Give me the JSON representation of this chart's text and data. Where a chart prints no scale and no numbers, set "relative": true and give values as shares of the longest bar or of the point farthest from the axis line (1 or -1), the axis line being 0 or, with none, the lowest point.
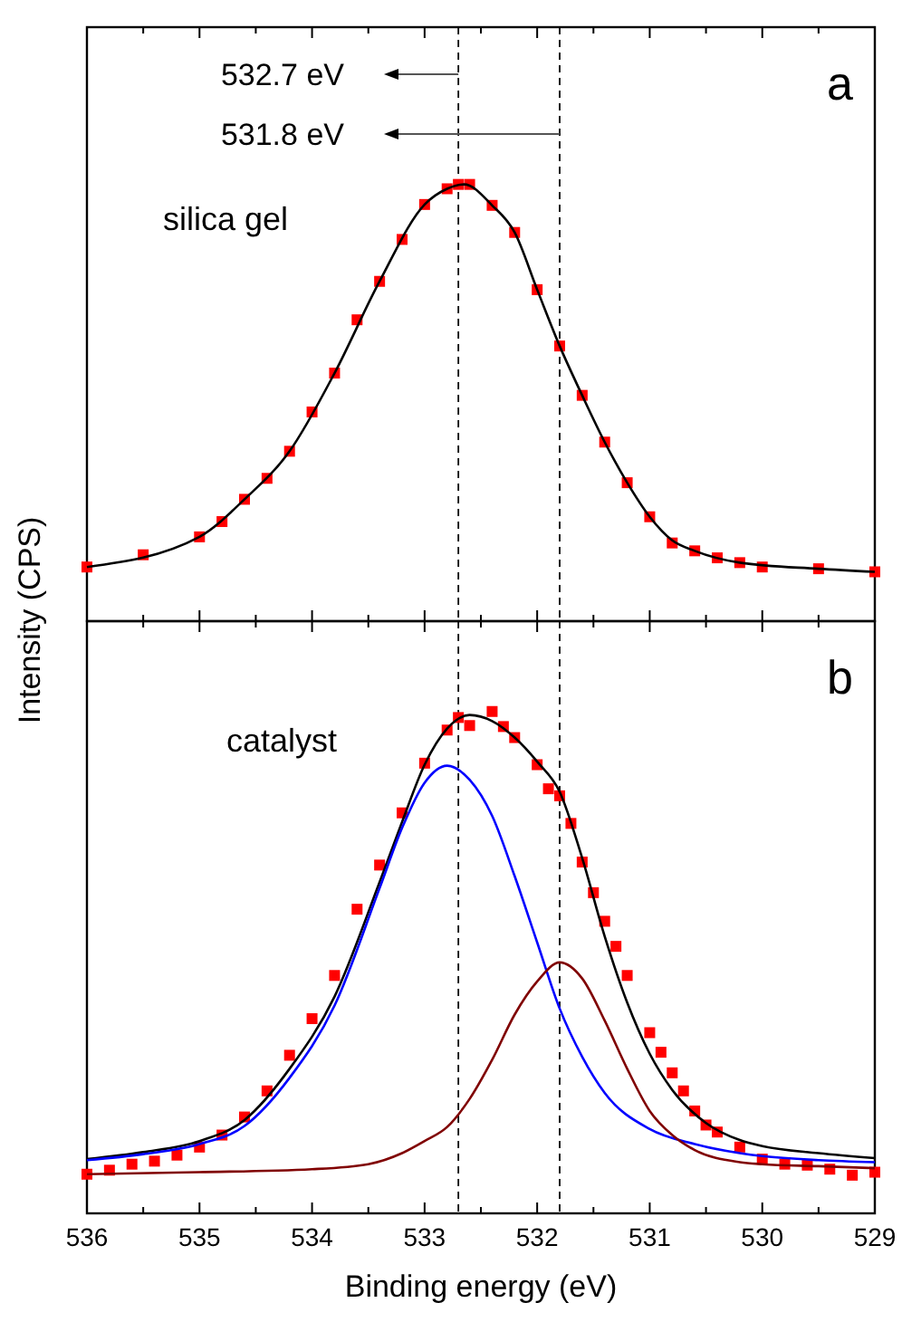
{
  "chart_data": [
    {
      "type": "scatter",
      "title": "a",
      "annotations": [
        "532.7 eV",
        "531.8 eV",
        "silica gel"
      ],
      "ylabel": "Intensity (CPS)",
      "relative": true,
      "tick_labels": false,
      "xlim": [
        536,
        529
      ],
      "xticks": [
        536,
        {
          "value": 535.5,
          "label": null
        },
        535,
        {
          "value": 534.5,
          "label": null
        },
        534,
        {
          "value": 533.5,
          "label": null
        },
        533,
        {
          "value": 532.5,
          "label": null
        },
        532,
        {
          "value": 531.5,
          "label": null
        },
        531,
        {
          "value": 530.5,
          "label": null
        },
        530,
        {
          "value": 529.5,
          "label": null
        },
        529
      ],
      "ref_lines": [
        {
          "axis": "x",
          "value": 532.7,
          "line_style": "dashed",
          "color": "#000000"
        },
        {
          "axis": "x",
          "value": 531.8,
          "line_style": "dashed",
          "color": "#000000"
        }
      ],
      "series": [
        {
          "marker": "square",
          "color": "#ff0000",
          "x": [
            536,
            535.5,
            535,
            534.8,
            534.6,
            534.4,
            534.2,
            534,
            533.8,
            533.6,
            533.4,
            533.2,
            533,
            532.8,
            532.7,
            532.6,
            532.4,
            532.2,
            532,
            531.8,
            531.6,
            531.4,
            531.2,
            531,
            530.8,
            530.6,
            530.4,
            530.2,
            530,
            529.5,
            529
          ],
          "values": [
            0.124,
            0.152,
            0.193,
            0.228,
            0.279,
            0.327,
            0.389,
            0.479,
            0.568,
            0.69,
            0.778,
            0.874,
            0.954,
            0.99,
            1,
            1,
            0.952,
            0.89,
            0.759,
            0.63,
            0.517,
            0.41,
            0.317,
            0.239,
            0.179,
            0.161,
            0.145,
            0.134,
            0.124,
            0.12,
            0.113
          ]
        },
        {
          "type": "line",
          "color": "#000000",
          "x": [
            536,
            535,
            534.6,
            534.2,
            533.8,
            533.4,
            533,
            532.8,
            532.65,
            532.4,
            532.2,
            532,
            531.8,
            531.6,
            531.4,
            531.2,
            531,
            530.8,
            530.6,
            530.2,
            529.5,
            529
          ],
          "values": [
            0.124,
            0.193,
            0.279,
            0.389,
            0.568,
            0.778,
            0.954,
            0.99,
            1,
            0.952,
            0.89,
            0.759,
            0.63,
            0.517,
            0.41,
            0.317,
            0.239,
            0.185,
            0.161,
            0.134,
            0.12,
            0.113
          ]
        }
      ]
    },
    {
      "type": "scatter",
      "title": "b",
      "annotations": [
        "catalyst"
      ],
      "xlabel": "Binding energy (eV)",
      "relative": true,
      "tick_labels": "x",
      "xlim": [
        536,
        529
      ],
      "xticks": [
        536,
        {
          "value": 535.5,
          "label": null
        },
        535,
        {
          "value": 534.5,
          "label": null
        },
        534,
        {
          "value": 533.5,
          "label": null
        },
        533,
        {
          "value": 532.5,
          "label": null
        },
        532,
        {
          "value": 531.5,
          "label": null
        },
        531,
        {
          "value": 530.5,
          "label": null
        },
        530,
        {
          "value": 529.5,
          "label": null
        },
        529
      ],
      "ref_lines": [
        {
          "axis": "x",
          "value": 532.7,
          "line_style": "dashed",
          "color": "#000000"
        },
        {
          "axis": "x",
          "value": 531.8,
          "line_style": "dashed",
          "color": "#000000"
        }
      ],
      "series": [
        {
          "marker": "square",
          "color": "#ff0000",
          "x": [
            536,
            535.8,
            535.6,
            535.4,
            535.2,
            535,
            534.8,
            534.6,
            534.4,
            534.2,
            534,
            533.8,
            533.6,
            533.4,
            533.2,
            533,
            532.8,
            532.7,
            532.6,
            532.4,
            532.3,
            532.2,
            532,
            531.9,
            531.8,
            531.7,
            531.6,
            531.5,
            531.4,
            531.3,
            531.2,
            531,
            530.9,
            530.8,
            530.7,
            530.6,
            530.5,
            530.4,
            530.2,
            530,
            529.8,
            529.6,
            529.4,
            529.2,
            529
          ],
          "values": [
            0.078,
            0.086,
            0.098,
            0.104,
            0.116,
            0.132,
            0.156,
            0.192,
            0.244,
            0.315,
            0.388,
            0.474,
            0.606,
            0.694,
            0.798,
            0.897,
            0.963,
            0.988,
            0.972,
            1,
            0.97,
            0.948,
            0.894,
            0.846,
            0.832,
            0.777,
            0.7,
            0.639,
            0.582,
            0.532,
            0.474,
            0.36,
            0.321,
            0.28,
            0.244,
            0.204,
            0.176,
            0.162,
            0.132,
            0.108,
            0.098,
            0.096,
            0.088,
            0.076,
            0.082
          ]
        },
        {
          "type": "line",
          "color": "#000000",
          "x": [
            536,
            535.5,
            535,
            534.6,
            534.2,
            533.8,
            533.4,
            533.2,
            533,
            532.8,
            532.6,
            532.4,
            532.2,
            532,
            531.8,
            531.6,
            531.4,
            531.2,
            531,
            530.8,
            530.5,
            530.2,
            530,
            529.5,
            529
          ],
          "values": [
            0.108,
            0.122,
            0.144,
            0.186,
            0.288,
            0.432,
            0.66,
            0.78,
            0.894,
            0.966,
            0.993,
            0.981,
            0.948,
            0.9,
            0.84,
            0.708,
            0.552,
            0.42,
            0.318,
            0.246,
            0.18,
            0.146,
            0.134,
            0.12,
            0.11
          ]
        },
        {
          "type": "line",
          "color": "#0000ff",
          "x": [
            536,
            535.5,
            535,
            534.6,
            534.2,
            533.8,
            533.4,
            533.2,
            533,
            532.8,
            532.6,
            532.4,
            532.2,
            532,
            531.8,
            531.6,
            531.4,
            531,
            530.6,
            530.2,
            530,
            529.5,
            529
          ],
          "values": [
            0.106,
            0.118,
            0.138,
            0.174,
            0.27,
            0.414,
            0.648,
            0.768,
            0.858,
            0.892,
            0.864,
            0.792,
            0.672,
            0.54,
            0.408,
            0.312,
            0.24,
            0.168,
            0.138,
            0.12,
            0.114,
            0.106,
            0.102
          ]
        },
        {
          "type": "line",
          "color": "#800000",
          "x": [
            536,
            535,
            534,
            533.5,
            533.2,
            533,
            532.8,
            532.6,
            532.4,
            532.2,
            532,
            531.8,
            531.6,
            531.4,
            531.2,
            531,
            530.8,
            530.6,
            530.2,
            530,
            529.5,
            529
          ],
          "values": [
            0.078,
            0.082,
            0.088,
            0.098,
            0.12,
            0.144,
            0.172,
            0.228,
            0.306,
            0.396,
            0.462,
            0.5,
            0.468,
            0.384,
            0.288,
            0.204,
            0.156,
            0.126,
            0.102,
            0.098,
            0.094,
            0.09
          ]
        }
      ]
    }
  ]
}
